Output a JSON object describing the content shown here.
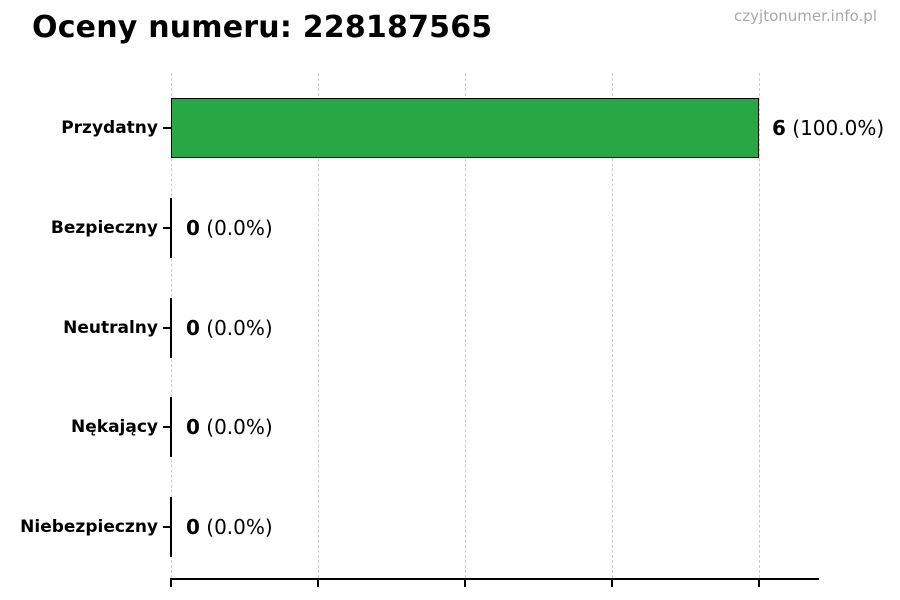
{
  "page": {
    "watermark": "czyjtonumer.info.pl"
  },
  "chart_data": {
    "type": "bar",
    "orientation": "horizontal",
    "title": "Oceny numeru: 228187565",
    "categories": [
      "Przydatny",
      "Bezpieczny",
      "Neutralny",
      "Nękający",
      "Niebezpieczny"
    ],
    "values": [
      6,
      0,
      0,
      0,
      0
    ],
    "value_labels": [
      {
        "count": "6",
        "percent": "(100.0%)"
      },
      {
        "count": "0",
        "percent": "(0.0%)"
      },
      {
        "count": "0",
        "percent": "(0.0%)"
      },
      {
        "count": "0",
        "percent": "(0.0%)"
      },
      {
        "count": "0",
        "percent": "(0.0%)"
      }
    ],
    "xlabel": "",
    "ylabel": "",
    "xlim": [
      0,
      6
    ],
    "x_ticks": [
      0,
      1.5,
      3,
      4.5,
      6
    ],
    "x_tick_labels_visible": false,
    "grid": true,
    "gridline_style": "dashed",
    "legend": false,
    "colors": {
      "bar_fill": "#28a745",
      "bar_edge": "#000000",
      "gridline": "#cccccc",
      "axis": "#000000",
      "watermark_text": "#a8a8a8"
    }
  }
}
